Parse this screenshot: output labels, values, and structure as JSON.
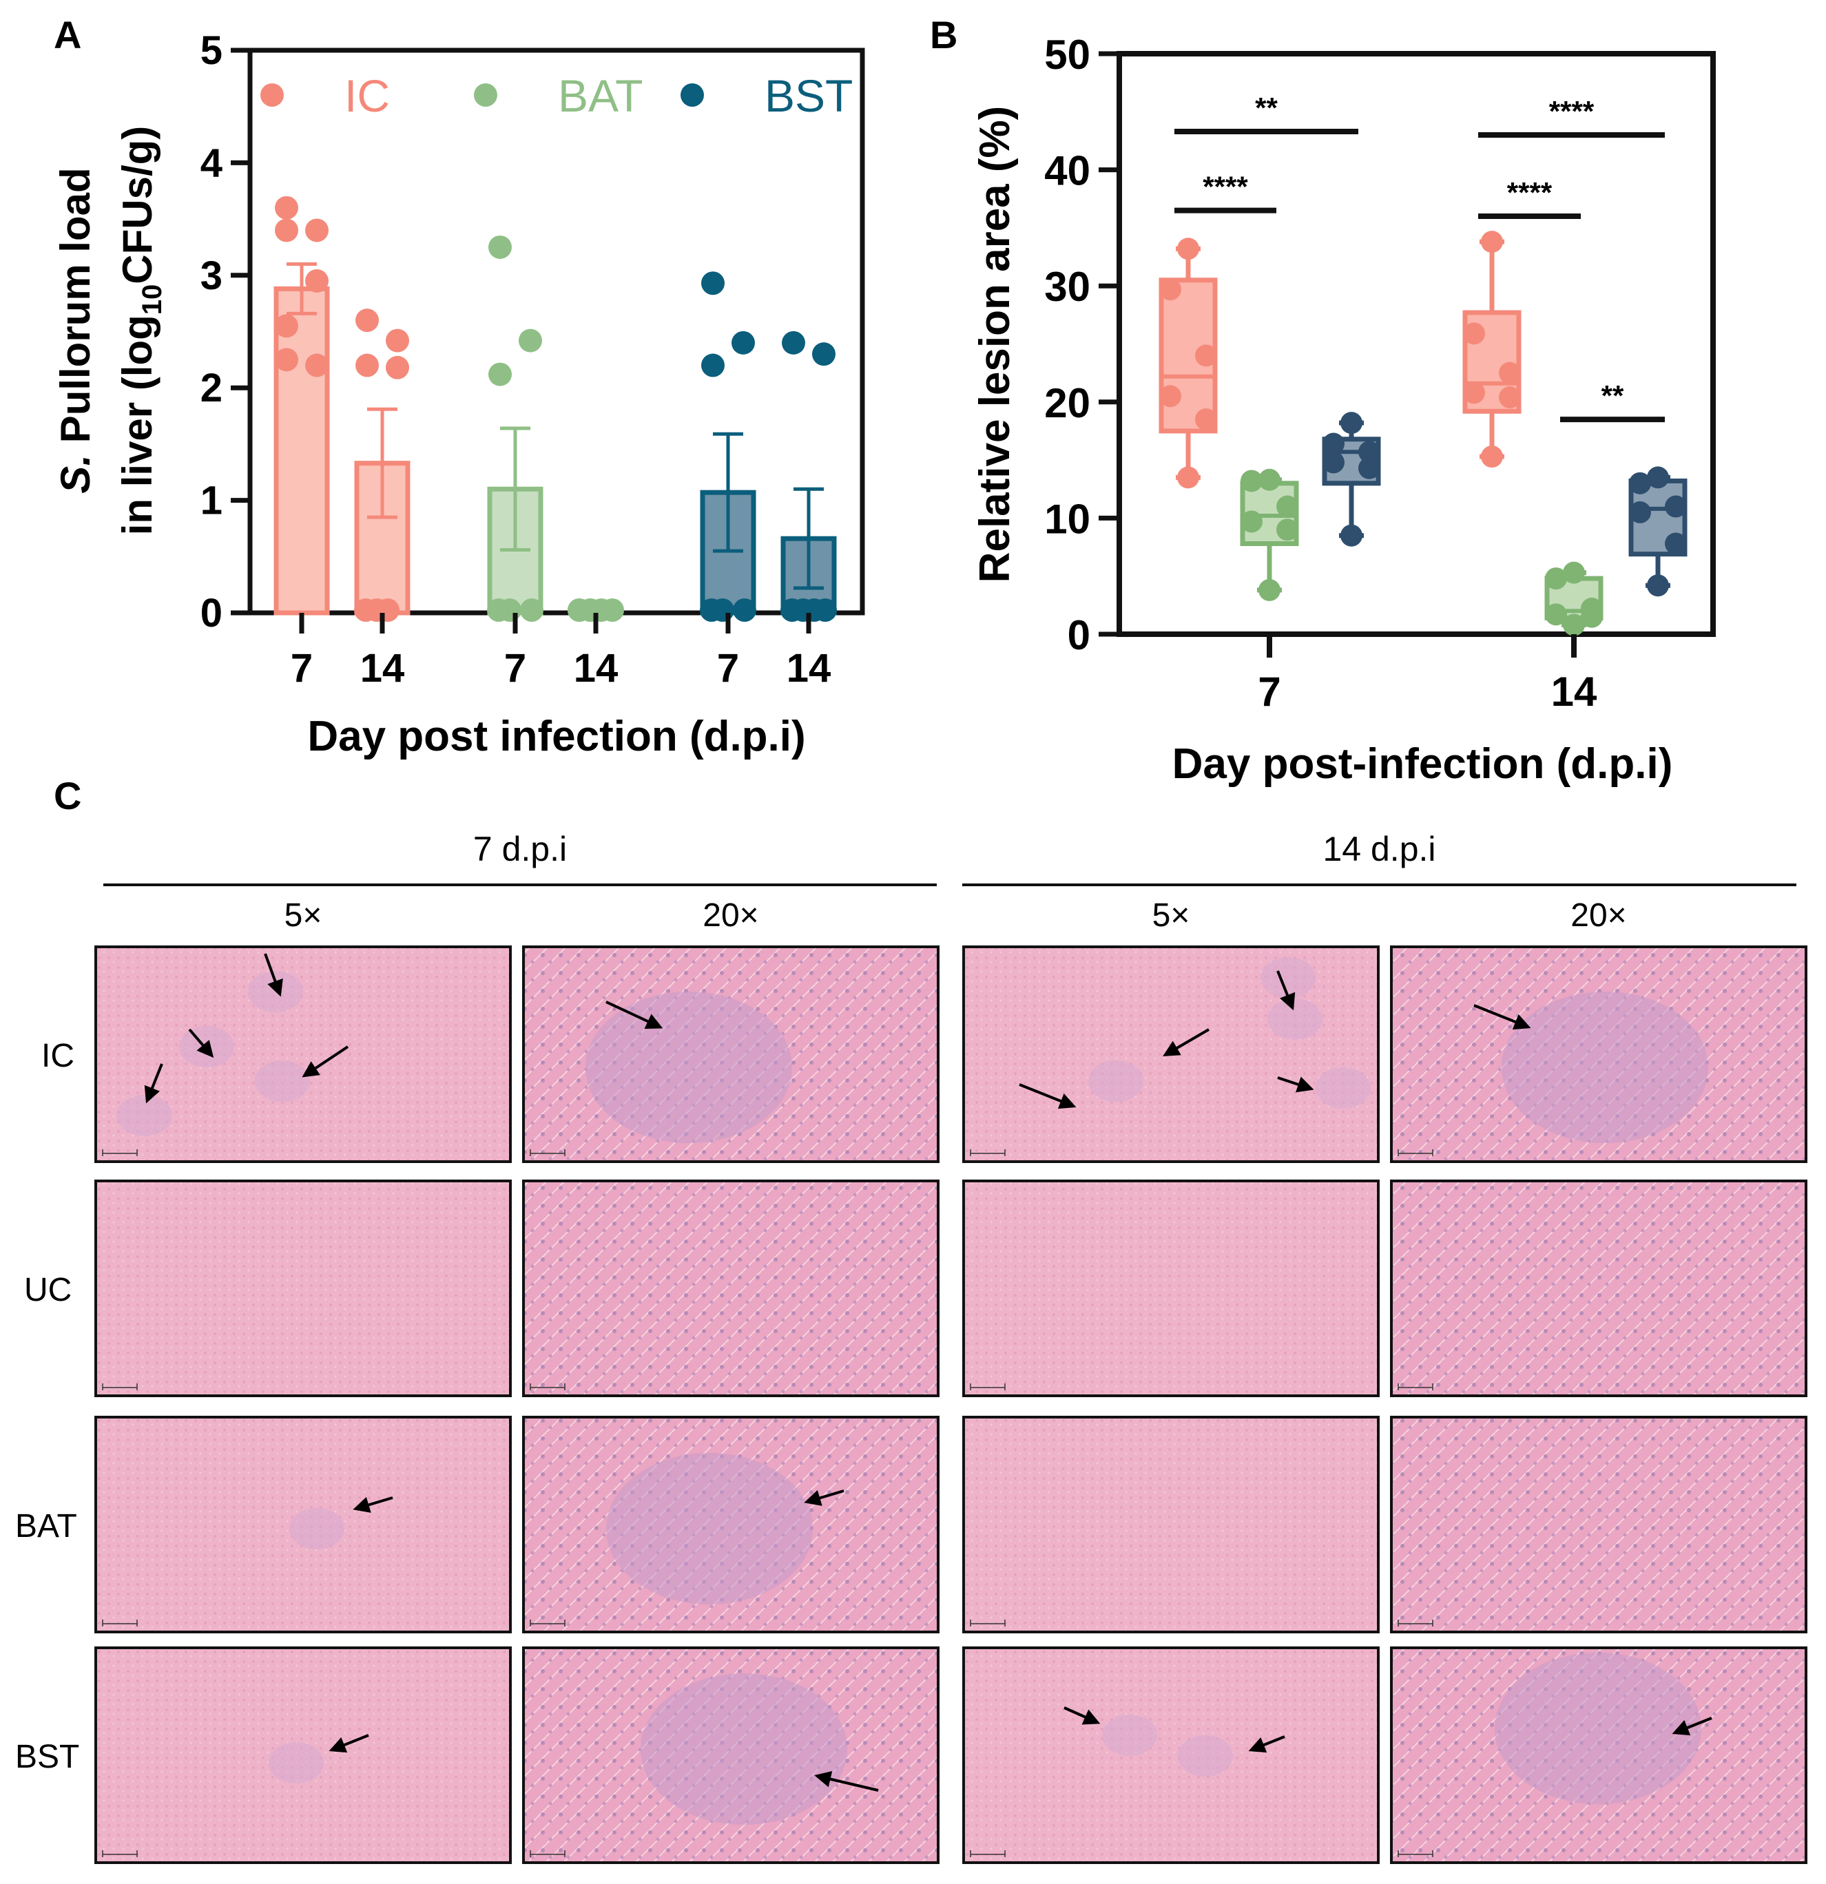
{
  "panel_labels": {
    "a": "A",
    "b": "B",
    "c": "C"
  },
  "colors": {
    "IC": "#f4897a",
    "BAT": "#8fbf86",
    "BST": "#0b5e7c",
    "BST_box": "#2f4e6e",
    "axis": "#111111"
  },
  "chart_data": [
    {
      "type": "bar",
      "panel": "A",
      "ylabel_line1_italic": "S.",
      "ylabel_line1": " Pullorum load",
      "ylabel_line2_pre": "in liver (log",
      "ylabel_line2_sub": "10",
      "ylabel_line2_post": "CFUs/g)",
      "xlabel": "Day post infection (d.p.i)",
      "ylim": [
        0,
        5
      ],
      "yticks": [
        "0",
        "1",
        "2",
        "3",
        "4",
        "5"
      ],
      "legend": [
        {
          "name": "IC"
        },
        {
          "name": "BAT"
        },
        {
          "name": "BST"
        }
      ],
      "legend_placement": "top",
      "categories": [
        "7",
        "14",
        "7",
        "14",
        "7",
        "14"
      ],
      "bars": [
        {
          "group": "IC",
          "day": "7",
          "mean": 2.88,
          "sem": 0.22,
          "points": [
            3.6,
            3.4,
            3.4,
            2.95,
            2.55,
            2.2,
            2.25
          ]
        },
        {
          "group": "IC",
          "day": "14",
          "mean": 1.33,
          "sem": 0.48,
          "points": [
            2.6,
            2.42,
            2.2,
            2.18,
            0,
            0,
            0
          ]
        },
        {
          "group": "BAT",
          "day": "7",
          "mean": 1.1,
          "sem": 0.54,
          "points": [
            3.25,
            2.42,
            2.12,
            0,
            0,
            0
          ]
        },
        {
          "group": "BAT",
          "day": "14",
          "mean": 0,
          "sem": 0,
          "points": [
            0,
            0,
            0,
            0,
            0,
            0
          ]
        },
        {
          "group": "BST",
          "day": "7",
          "mean": 1.07,
          "sem": 0.52,
          "points": [
            2.93,
            2.4,
            2.2,
            0,
            0,
            0
          ]
        },
        {
          "group": "BST",
          "day": "14",
          "mean": 0.66,
          "sem": 0.44,
          "points": [
            2.4,
            2.3,
            0,
            0,
            0,
            0
          ]
        }
      ]
    },
    {
      "type": "box",
      "panel": "B",
      "ylabel": "Relative lesion area (%)",
      "xlabel": "Day post-infection (d.p.i)",
      "ylim": [
        0,
        50
      ],
      "yticks": [
        "0",
        "10",
        "20",
        "30",
        "40",
        "50"
      ],
      "categories": [
        "7",
        "14"
      ],
      "boxes": [
        {
          "group": "IC",
          "day": "7",
          "min": 13.5,
          "q1": 17.5,
          "median": 22.2,
          "q3": 30.5,
          "max": 33.2,
          "points": [
            33.2,
            29.7,
            24.0,
            20.5,
            18.5,
            13.5
          ]
        },
        {
          "group": "BAT",
          "day": "7",
          "min": 3.8,
          "q1": 7.8,
          "median": 10.2,
          "q3": 13.0,
          "max": 13.3,
          "points": [
            13.3,
            13.2,
            11.0,
            9.7,
            9.0,
            3.8
          ]
        },
        {
          "group": "BST",
          "day": "7",
          "min": 8.5,
          "q1": 13.0,
          "median": 15.7,
          "q3": 16.8,
          "max": 18.2,
          "points": [
            18.2,
            16.4,
            15.7,
            14.8,
            14.3,
            8.5
          ]
        },
        {
          "group": "IC",
          "day": "14",
          "min": 15.3,
          "q1": 19.2,
          "median": 21.6,
          "q3": 27.7,
          "max": 33.8,
          "points": [
            33.8,
            25.9,
            22.5,
            20.8,
            20.4,
            15.3
          ]
        },
        {
          "group": "BAT",
          "day": "14",
          "min": 0.8,
          "q1": 1.4,
          "median": 2.0,
          "q3": 4.8,
          "max": 5.3,
          "points": [
            5.3,
            4.8,
            2.2,
            1.7,
            1.5,
            0.8
          ]
        },
        {
          "group": "BST",
          "day": "14",
          "min": 4.2,
          "q1": 6.9,
          "median": 10.8,
          "q3": 13.2,
          "max": 13.5,
          "points": [
            13.5,
            13.0,
            11.0,
            10.5,
            7.8,
            4.2
          ]
        }
      ],
      "significance": [
        {
          "from": 0,
          "to": 2,
          "y": 43.3,
          "label": "**"
        },
        {
          "from": 0,
          "to": 1,
          "y": 36.5,
          "label": "****"
        },
        {
          "from": 3,
          "to": 5,
          "y": 43.0,
          "label": "****"
        },
        {
          "from": 3,
          "to": 4,
          "y": 36.0,
          "label": "****"
        },
        {
          "from": 4,
          "to": 5,
          "y": 18.5,
          "label": "**"
        }
      ]
    }
  ],
  "histology": {
    "timepoints": [
      "7 d.p.i",
      "14 d.p.i"
    ],
    "magnifications": [
      "5×",
      "20×",
      "5×",
      "20×"
    ],
    "rows": [
      "IC",
      "UC",
      "BAT",
      "BST"
    ]
  }
}
